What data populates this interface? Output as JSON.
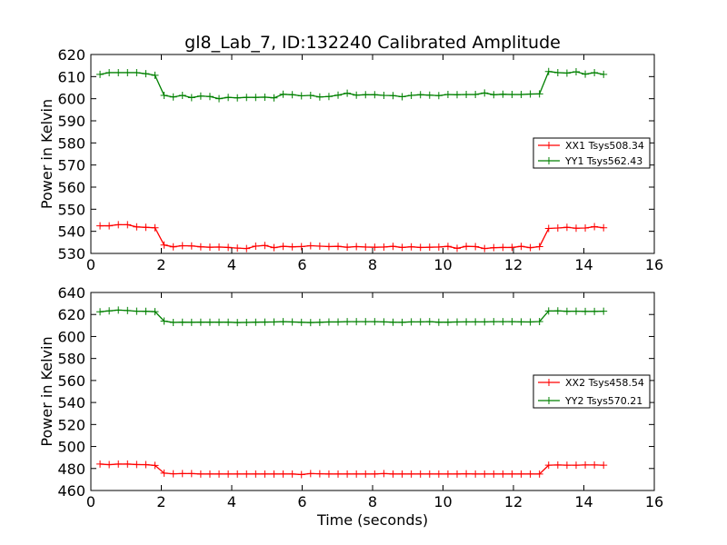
{
  "figure": {
    "title": "gl8_Lab_7, ID:132240 Calibrated Amplitude",
    "xlabel": "Time (seconds)"
  },
  "chart_data": [
    {
      "type": "line",
      "title": "gl8_Lab_7, ID:132240 Calibrated Amplitude",
      "xlabel": "",
      "ylabel": "Power in Kelvin",
      "xlim": [
        0,
        16
      ],
      "ylim": [
        530,
        620
      ],
      "xticks": [
        0,
        2,
        4,
        6,
        8,
        10,
        12,
        14,
        16
      ],
      "yticks": [
        530,
        540,
        550,
        560,
        570,
        580,
        590,
        600,
        610,
        620
      ],
      "grid": false,
      "legend_position": "right",
      "x": [
        0.26,
        0.52,
        0.78,
        1.04,
        1.3,
        1.56,
        1.82,
        2.08,
        2.34,
        2.6,
        2.86,
        3.12,
        3.38,
        3.64,
        3.9,
        4.16,
        4.42,
        4.68,
        4.94,
        5.2,
        5.46,
        5.72,
        5.98,
        6.24,
        6.5,
        6.76,
        7.02,
        7.28,
        7.54,
        7.8,
        8.06,
        8.32,
        8.58,
        8.84,
        9.1,
        9.36,
        9.62,
        9.88,
        10.14,
        10.4,
        10.66,
        10.92,
        11.18,
        11.44,
        11.7,
        11.96,
        12.22,
        12.48,
        12.74,
        13.0,
        13.26,
        13.52,
        13.78,
        14.04,
        14.3,
        14.56
      ],
      "series": [
        {
          "name": "XX1 Tsys508.34",
          "color": "#ff0000",
          "values": [
            542.5,
            542.5,
            543.0,
            543.0,
            542.0,
            541.8,
            541.6,
            533.8,
            533.0,
            533.5,
            533.4,
            533.0,
            532.8,
            532.9,
            532.7,
            532.4,
            532.2,
            533.3,
            533.6,
            532.6,
            533.2,
            533.0,
            533.1,
            533.5,
            533.3,
            533.1,
            533.2,
            532.8,
            533.1,
            532.9,
            532.8,
            532.9,
            533.2,
            532.7,
            533.0,
            532.7,
            532.8,
            532.9,
            533.2,
            532.3,
            533.2,
            533.1,
            532.2,
            532.6,
            532.7,
            532.7,
            533.2,
            532.6,
            533.1,
            541.3,
            541.5,
            541.8,
            541.4,
            541.5,
            542.1,
            541.6
          ]
        },
        {
          "name": "YY1 Tsys562.43",
          "color": "#008000",
          "values": [
            611.0,
            611.8,
            611.8,
            611.8,
            611.8,
            611.3,
            610.6,
            601.5,
            600.8,
            601.5,
            600.5,
            601.2,
            601.0,
            600.0,
            600.6,
            600.4,
            600.6,
            600.6,
            600.7,
            600.4,
            602.0,
            601.8,
            601.3,
            601.5,
            600.8,
            601.0,
            601.6,
            602.5,
            601.6,
            601.8,
            601.8,
            601.5,
            601.4,
            600.9,
            601.5,
            601.8,
            601.6,
            601.4,
            601.9,
            601.8,
            601.9,
            601.9,
            602.6,
            601.8,
            602.0,
            601.9,
            601.9,
            602.1,
            602.2,
            612.3,
            611.8,
            611.6,
            612.2,
            611.1,
            611.8,
            611.0
          ]
        }
      ]
    },
    {
      "type": "line",
      "title": "",
      "xlabel": "Time (seconds)",
      "ylabel": "Power in Kelvin",
      "xlim": [
        0,
        16
      ],
      "ylim": [
        460,
        640
      ],
      "xticks": [
        0,
        2,
        4,
        6,
        8,
        10,
        12,
        14,
        16
      ],
      "yticks": [
        460,
        480,
        500,
        520,
        540,
        560,
        580,
        600,
        620,
        640
      ],
      "grid": false,
      "legend_position": "right",
      "x": [
        0.26,
        0.52,
        0.78,
        1.04,
        1.3,
        1.56,
        1.82,
        2.08,
        2.34,
        2.6,
        2.86,
        3.12,
        3.38,
        3.64,
        3.9,
        4.16,
        4.42,
        4.68,
        4.94,
        5.2,
        5.46,
        5.72,
        5.98,
        6.24,
        6.5,
        6.76,
        7.02,
        7.28,
        7.54,
        7.8,
        8.06,
        8.32,
        8.58,
        8.84,
        9.1,
        9.36,
        9.62,
        9.88,
        10.14,
        10.4,
        10.66,
        10.92,
        11.18,
        11.44,
        11.7,
        11.96,
        12.22,
        12.48,
        12.74,
        13.0,
        13.26,
        13.52,
        13.78,
        14.04,
        14.3,
        14.56
      ],
      "series": [
        {
          "name": "XX2 Tsys458.54",
          "color": "#ff0000",
          "values": [
            484.0,
            483.5,
            484.0,
            484.0,
            483.6,
            483.5,
            482.8,
            475.8,
            475.2,
            475.4,
            475.4,
            475.0,
            475.0,
            475.0,
            475.0,
            475.0,
            475.0,
            475.0,
            475.0,
            475.0,
            475.0,
            475.0,
            474.5,
            475.4,
            475.2,
            475.0,
            475.0,
            475.0,
            475.0,
            475.0,
            475.0,
            475.4,
            475.0,
            475.0,
            475.0,
            475.0,
            475.0,
            475.0,
            475.0,
            475.0,
            475.2,
            475.0,
            475.0,
            475.0,
            475.0,
            475.0,
            475.0,
            475.0,
            475.0,
            483.0,
            483.2,
            483.0,
            483.0,
            483.2,
            483.2,
            483.0
          ]
        },
        {
          "name": "YY2 Tsys570.21",
          "color": "#008000",
          "values": [
            622.5,
            623.3,
            624.0,
            623.6,
            623.0,
            622.9,
            622.6,
            614.0,
            612.8,
            613.0,
            612.9,
            613.0,
            613.0,
            613.0,
            613.0,
            612.7,
            612.8,
            613.0,
            613.1,
            613.2,
            613.5,
            613.2,
            612.9,
            612.7,
            612.9,
            613.2,
            613.2,
            613.5,
            613.5,
            613.5,
            613.5,
            613.3,
            613.0,
            612.9,
            613.3,
            613.3,
            613.5,
            613.0,
            613.0,
            613.2,
            613.3,
            613.3,
            613.3,
            613.5,
            613.5,
            613.5,
            613.3,
            613.2,
            613.6,
            623.2,
            623.3,
            622.9,
            623.0,
            622.8,
            622.8,
            623.0
          ]
        }
      ]
    }
  ]
}
